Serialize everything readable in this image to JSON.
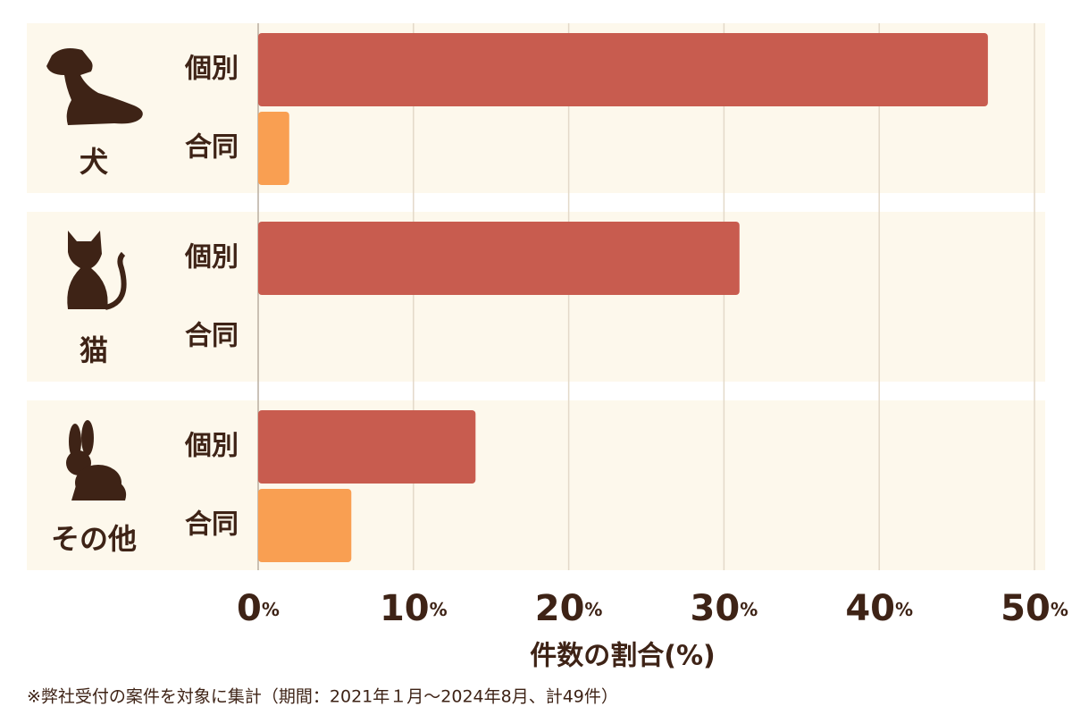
{
  "chart_data": {
    "type": "bar",
    "orientation": "horizontal",
    "categories": [
      "犬",
      "猫",
      "その他"
    ],
    "series": [
      {
        "name": "個別",
        "color": "#c85c4f",
        "values": [
          47,
          31,
          14
        ]
      },
      {
        "name": "合同",
        "color": "#f99f52",
        "values": [
          2,
          0,
          6
        ]
      }
    ],
    "xlim": [
      0,
      50
    ],
    "xticks": [
      {
        "value": 0,
        "label": "0%"
      },
      {
        "value": 10,
        "label": "10%"
      },
      {
        "value": 20,
        "label": "20%"
      },
      {
        "value": 30,
        "label": "30%"
      },
      {
        "value": 40,
        "label": "40%"
      },
      {
        "value": 50,
        "label": "50%"
      }
    ],
    "xlabel": "件数の割合(%)",
    "grid": true,
    "footnote": "※弊社受付の案件を対象に集計（期間：2021年１月～2024年8月、計49件）"
  }
}
